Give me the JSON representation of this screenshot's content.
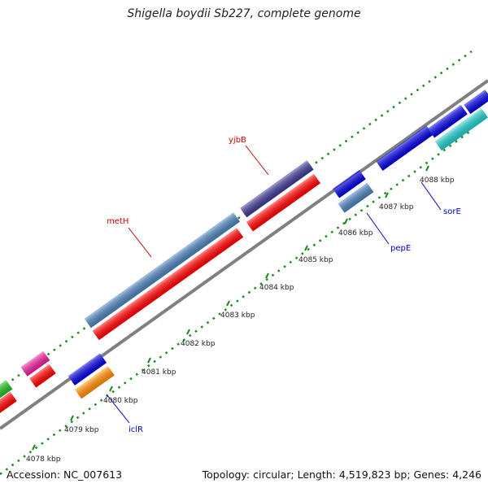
{
  "title": "Shigella boydii Sb227, complete genome",
  "footer": {
    "accession": "Accession: NC_007613",
    "summary": "Topology: circular; Length: 4,519,823 bp; Genes: 4,246"
  },
  "colors": {
    "backbone": "#808080",
    "dots": "#1a8a1a",
    "label_red": "#cc0000",
    "label_blue": "#0000cc"
  },
  "ticks": [
    "4078 kbp",
    "4079 kbp",
    "4080 kbp",
    "4081 kbp",
    "4082 kbp",
    "4083 kbp",
    "4084 kbp",
    "4085 kbp",
    "4086 kbp",
    "4087 kbp",
    "4088 kbp"
  ],
  "labeled_genes": [
    {
      "name": "yjbB",
      "color": "#cc0000"
    },
    {
      "name": "metH",
      "color": "#cc0000"
    },
    {
      "name": "pepE",
      "color": "#0000cc"
    },
    {
      "name": "sorE",
      "color": "#0000cc"
    },
    {
      "name": "iclR",
      "color": "#0000cc"
    }
  ]
}
